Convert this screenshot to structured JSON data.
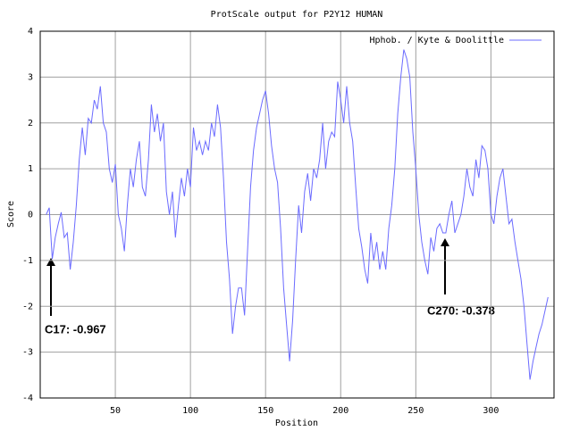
{
  "chart_data": {
    "type": "line",
    "title": "ProtScale output for P2Y12 HUMAN",
    "x_label": "Position",
    "y_label": "Score",
    "xlim": [
      0,
      342
    ],
    "ylim": [
      -4,
      4
    ],
    "xticks": [
      50,
      100,
      150,
      200,
      250,
      300
    ],
    "yticks": [
      -4,
      -3,
      -2,
      -1,
      0,
      1,
      2,
      3,
      4
    ],
    "grid": true,
    "legend": "upper right",
    "annotations": [
      "C17: -0.967",
      "C270: -0.378"
    ],
    "x": [
      4,
      6,
      8,
      10,
      12,
      14,
      16,
      18,
      20,
      22,
      24,
      26,
      28,
      30,
      32,
      34,
      36,
      38,
      40,
      42,
      44,
      46,
      48,
      50,
      52,
      54,
      56,
      58,
      60,
      62,
      64,
      66,
      68,
      70,
      72,
      74,
      76,
      78,
      80,
      82,
      84,
      86,
      88,
      90,
      92,
      94,
      96,
      98,
      100,
      102,
      104,
      106,
      108,
      110,
      112,
      114,
      116,
      118,
      120,
      122,
      124,
      126,
      128,
      130,
      132,
      134,
      136,
      138,
      140,
      142,
      144,
      146,
      148,
      150,
      152,
      154,
      156,
      158,
      160,
      162,
      164,
      166,
      168,
      170,
      172,
      174,
      176,
      178,
      180,
      182,
      184,
      186,
      188,
      190,
      192,
      194,
      196,
      198,
      200,
      202,
      204,
      206,
      208,
      210,
      212,
      214,
      216,
      218,
      220,
      222,
      224,
      226,
      228,
      230,
      232,
      234,
      236,
      238,
      240,
      242,
      244,
      246,
      248,
      250,
      252,
      254,
      256,
      258,
      260,
      262,
      264,
      266,
      268,
      270,
      272,
      274,
      276,
      278,
      280,
      282,
      284,
      286,
      288,
      290,
      292,
      294,
      296,
      298,
      300,
      302,
      304,
      306,
      308,
      310,
      312,
      314,
      316,
      318,
      320,
      322,
      324,
      326,
      328,
      330,
      332,
      334,
      336,
      338
    ],
    "series": [
      {
        "name": "Hphob. / Kyte & Doolittle",
        "color": "#6b6bff",
        "values": [
          0,
          0.15,
          -0.97,
          -0.5,
          -0.2,
          0.05,
          -0.5,
          -0.4,
          -1.2,
          -0.6,
          0.2,
          1.2,
          1.9,
          1.3,
          2.1,
          2.0,
          2.5,
          2.3,
          2.8,
          2.0,
          1.8,
          1.0,
          0.7,
          1.1,
          0.0,
          -0.3,
          -0.8,
          0.2,
          1.0,
          0.6,
          1.2,
          1.6,
          0.6,
          0.4,
          1.2,
          2.4,
          1.8,
          2.2,
          1.6,
          2.0,
          0.5,
          0.0,
          0.5,
          -0.5,
          0.2,
          0.8,
          0.4,
          1.0,
          0.6,
          1.9,
          1.4,
          1.6,
          1.3,
          1.6,
          1.4,
          2.0,
          1.7,
          2.4,
          1.9,
          0.8,
          -0.6,
          -1.4,
          -2.6,
          -2.0,
          -1.6,
          -1.6,
          -2.2,
          -0.8,
          0.6,
          1.4,
          1.9,
          2.2,
          2.5,
          2.7,
          2.2,
          1.5,
          1.0,
          0.7,
          -0.3,
          -1.6,
          -2.4,
          -3.2,
          -2.3,
          -1.0,
          0.2,
          -0.4,
          0.5,
          0.9,
          0.3,
          1.0,
          0.8,
          1.2,
          2.0,
          1.0,
          1.6,
          1.8,
          1.7,
          2.9,
          2.5,
          2.0,
          2.8,
          2.0,
          1.6,
          0.6,
          -0.3,
          -0.7,
          -1.2,
          -1.5,
          -0.4,
          -1.0,
          -0.6,
          -1.2,
          -0.8,
          -1.2,
          -0.3,
          0.2,
          1.0,
          2.2,
          3.0,
          3.6,
          3.4,
          3.0,
          1.8,
          1.0,
          0.0,
          -0.6,
          -1.0,
          -1.3,
          -0.5,
          -0.8,
          -0.3,
          -0.2,
          -0.4,
          -0.4,
          0.0,
          0.3,
          -0.4,
          -0.2,
          0.0,
          0.4,
          1.0,
          0.6,
          0.4,
          1.2,
          0.8,
          1.5,
          1.4,
          1.0,
          0.0,
          -0.2,
          0.4,
          0.8,
          1.0,
          0.4,
          -0.2,
          -0.1,
          -0.6,
          -1.0,
          -1.4,
          -2.0,
          -2.8,
          -3.6,
          -3.2,
          -2.9,
          -2.6,
          -2.4,
          -2.1,
          -1.8
        ]
      }
    ]
  }
}
